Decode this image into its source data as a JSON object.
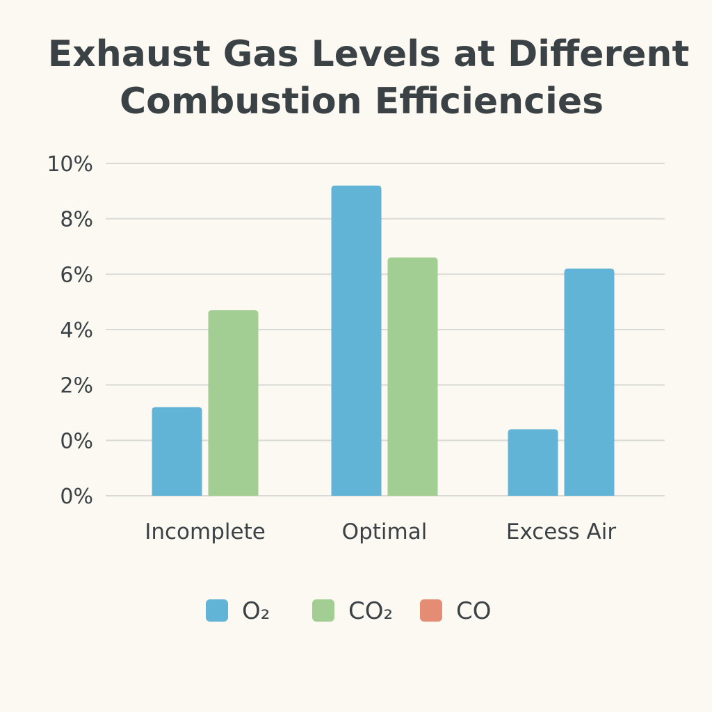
{
  "chart_data": {
    "type": "bar",
    "title_lines": [
      "Exhaust Gas Levels at Different",
      "Combustion Efficiencies"
    ],
    "xlabel": "",
    "ylabel": "",
    "y_tick_labels": [
      "0%",
      "0%",
      "2%",
      "4%",
      "6%",
      "8%",
      "10%"
    ],
    "ylim": [
      -2,
      10
    ],
    "grid": true,
    "categories": [
      "Incomplete",
      "Optimal",
      "Excess Air"
    ],
    "series": [
      {
        "name": "O₂",
        "color": "#62b4d6"
      },
      {
        "name": "CO₂",
        "color": "#a2cd93"
      },
      {
        "name": "CO",
        "color": "#e58c74"
      }
    ],
    "bars": [
      {
        "category": "Incomplete",
        "series": "O₂",
        "value": 1.2
      },
      {
        "category": "Incomplete",
        "series": "CO₂",
        "value": 4.7
      },
      {
        "category": "Optimal",
        "series": "O₂",
        "value": 9.2
      },
      {
        "category": "Optimal",
        "series": "CO₂",
        "value": 6.6
      },
      {
        "category": "Excess Air",
        "series": "O₂",
        "value": 0.4
      },
      {
        "category": "Excess Air",
        "series": "O₂",
        "value": 6.2
      }
    ],
    "legend_position": "bottom-center"
  }
}
